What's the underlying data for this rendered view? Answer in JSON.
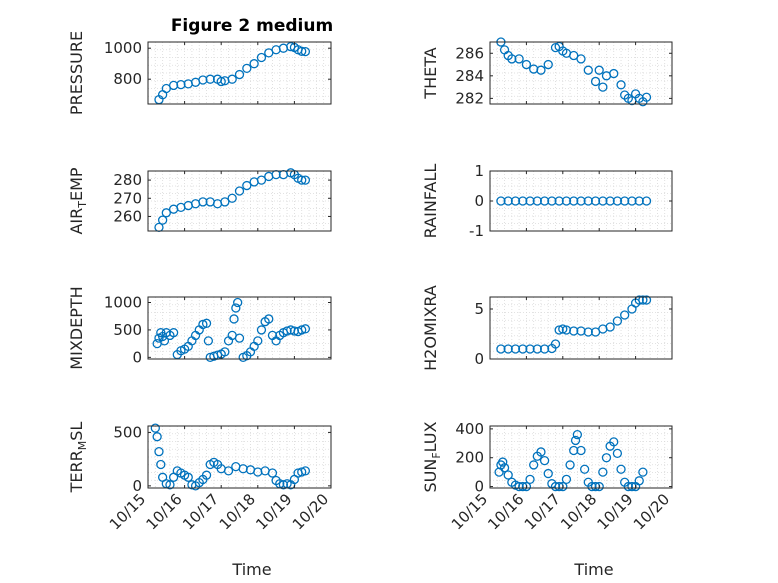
{
  "chart_data": {
    "type": "scatter",
    "title": "Figure 2 medium",
    "x_tick_labels": [
      "10/15",
      "10/16",
      "10/17",
      "10/18",
      "10/19",
      "10/20"
    ],
    "xlabel": "Time",
    "grid": "minor dotted",
    "marker": "open circle",
    "color": "#0072BD",
    "panels": [
      {
        "id": "pressure",
        "ylabel": "PRESSURE",
        "ylim": [
          640,
          1040
        ],
        "yticks": [
          800,
          1000
        ],
        "series": [
          {
            "x": [
              0.3,
              0.4,
              0.5,
              0.7,
              0.9,
              1.1,
              1.3,
              1.5,
              1.7,
              1.9,
              2.0,
              2.1,
              2.3,
              2.5,
              2.7,
              2.9,
              3.1,
              3.3,
              3.5,
              3.7,
              3.9,
              4.0,
              4.1,
              4.2,
              4.3
            ],
            "y": [
              668,
              700,
              740,
              760,
              765,
              770,
              780,
              795,
              800,
              800,
              785,
              790,
              800,
              830,
              870,
              900,
              940,
              970,
              990,
              1000,
              1010,
              1005,
              990,
              980,
              978
            ]
          }
        ]
      },
      {
        "id": "theta",
        "ylabel": "THETA",
        "ylim": [
          281.5,
          287
        ],
        "yticks": [
          282,
          284,
          286
        ],
        "series": [
          {
            "x": [
              0.3,
              0.4,
              0.5,
              0.6,
              0.8,
              1.0,
              1.2,
              1.4,
              1.6,
              1.8,
              1.9,
              2.0,
              2.1,
              2.3,
              2.5,
              2.7,
              2.9,
              3.0,
              3.1,
              3.2,
              3.4,
              3.6,
              3.7,
              3.8,
              3.9,
              4.0,
              4.1,
              4.2,
              4.3
            ],
            "y": [
              287,
              286.3,
              285.8,
              285.5,
              285.5,
              285,
              284.6,
              284.5,
              285,
              286.5,
              286.6,
              286.2,
              286,
              285.8,
              285.5,
              284.5,
              283.5,
              284.5,
              283,
              284,
              284.2,
              283.2,
              282.3,
              282,
              281.8,
              282.4,
              282,
              281.7,
              282.1
            ]
          }
        ]
      },
      {
        "id": "air_temp",
        "ylabel": "AIR",
        "ylabel_sub": "T",
        "ylabel_end": "EMP",
        "ylim": [
          252,
          285
        ],
        "yticks": [
          260,
          270,
          280
        ],
        "series": [
          {
            "x": [
              0.3,
              0.4,
              0.5,
              0.7,
              0.9,
              1.1,
              1.3,
              1.5,
              1.7,
              1.9,
              2.1,
              2.3,
              2.5,
              2.7,
              2.9,
              3.1,
              3.3,
              3.5,
              3.7,
              3.9,
              4.0,
              4.1,
              4.2,
              4.3
            ],
            "y": [
              254,
              258,
              262,
              264,
              265,
              266,
              267,
              268,
              268,
              267,
              268,
              270,
              274,
              277,
              279,
              280,
              282,
              283,
              283,
              284,
              283,
              281,
              280,
              280
            ]
          }
        ]
      },
      {
        "id": "rainfall",
        "ylabel": "RAINFALL",
        "ylim": [
          -1,
          1
        ],
        "yticks": [
          -1,
          0,
          1
        ],
        "series": [
          {
            "x": [
              0.3,
              0.5,
              0.7,
              0.9,
              1.1,
              1.3,
              1.5,
              1.7,
              1.9,
              2.1,
              2.3,
              2.5,
              2.7,
              2.9,
              3.1,
              3.3,
              3.5,
              3.7,
              3.9,
              4.1,
              4.3
            ],
            "y": [
              0,
              0,
              0,
              0,
              0,
              0,
              0,
              0,
              0,
              0,
              0,
              0,
              0,
              0,
              0,
              0,
              0,
              0,
              0,
              0,
              0
            ]
          }
        ]
      },
      {
        "id": "mixdepth",
        "ylabel": "MIXDEPTH",
        "ylim": [
          -30,
          1100
        ],
        "yticks": [
          0,
          500,
          1000
        ],
        "series": [
          {
            "x": [
              0.25,
              0.3,
              0.35,
              0.4,
              0.45,
              0.5,
              0.6,
              0.7,
              0.8,
              0.9,
              1.0,
              1.1,
              1.2,
              1.3,
              1.4,
              1.5,
              1.6,
              1.65,
              1.7,
              1.8,
              1.9,
              2.0,
              2.1,
              2.2,
              2.3,
              2.35,
              2.4,
              2.45,
              2.5,
              2.6,
              2.7,
              2.8,
              2.9,
              3.0,
              3.1,
              3.2,
              3.3,
              3.4,
              3.5,
              3.6,
              3.7,
              3.8,
              3.9,
              4.0,
              4.1,
              4.2,
              4.3
            ],
            "y": [
              250,
              350,
              450,
              380,
              300,
              450,
              400,
              450,
              50,
              120,
              150,
              200,
              300,
              400,
              500,
              600,
              620,
              300,
              0,
              20,
              40,
              60,
              100,
              300,
              400,
              700,
              900,
              1000,
              350,
              0,
              30,
              100,
              200,
              300,
              500,
              650,
              700,
              400,
              300,
              400,
              450,
              480,
              500,
              480,
              470,
              500,
              520
            ]
          }
        ]
      },
      {
        "id": "h2omixra",
        "ylabel": "H2OMIXRA",
        "ylim": [
          0,
          6.2
        ],
        "yticks": [
          0,
          5
        ],
        "series": [
          {
            "x": [
              0.3,
              0.5,
              0.7,
              0.9,
              1.1,
              1.3,
              1.5,
              1.7,
              1.8,
              1.9,
              2.0,
              2.1,
              2.3,
              2.5,
              2.7,
              2.9,
              3.1,
              3.3,
              3.5,
              3.7,
              3.9,
              4.0,
              4.1,
              4.2,
              4.3
            ],
            "y": [
              1,
              1,
              1,
              1,
              1,
              1,
              1,
              1.05,
              1.5,
              2.9,
              3,
              2.9,
              2.8,
              2.8,
              2.7,
              2.7,
              3,
              3.2,
              3.8,
              4.4,
              5,
              5.6,
              5.9,
              5.9,
              5.9
            ]
          }
        ]
      },
      {
        "id": "terr_msl",
        "ylabel": "TERR",
        "ylabel_sub": "M",
        "ylabel_end": "SL",
        "ylim": [
          -20,
          560
        ],
        "yticks": [
          0,
          500
        ],
        "series": [
          {
            "x": [
              0.2,
              0.25,
              0.3,
              0.35,
              0.4,
              0.5,
              0.6,
              0.7,
              0.8,
              0.9,
              1.0,
              1.1,
              1.2,
              1.3,
              1.4,
              1.5,
              1.6,
              1.7,
              1.8,
              1.9,
              2.0,
              2.2,
              2.4,
              2.6,
              2.8,
              3.0,
              3.2,
              3.4,
              3.5,
              3.6,
              3.7,
              3.8,
              3.9,
              4.0,
              4.1,
              4.2,
              4.3
            ],
            "y": [
              540,
              460,
              320,
              200,
              80,
              20,
              10,
              80,
              140,
              120,
              100,
              80,
              10,
              0,
              30,
              60,
              100,
              200,
              220,
              200,
              160,
              140,
              180,
              160,
              150,
              130,
              140,
              120,
              50,
              20,
              10,
              20,
              10,
              60,
              120,
              130,
              140
            ]
          }
        ]
      },
      {
        "id": "sun_flux",
        "ylabel": "SUN",
        "ylabel_sub": "F",
        "ylabel_end": "LUX",
        "ylim": [
          -10,
          420
        ],
        "yticks": [
          0,
          200,
          400
        ],
        "series": [
          {
            "x": [
              0.25,
              0.3,
              0.35,
              0.4,
              0.5,
              0.6,
              0.7,
              0.8,
              0.9,
              1.0,
              1.1,
              1.2,
              1.3,
              1.4,
              1.5,
              1.6,
              1.7,
              1.8,
              1.9,
              2.0,
              2.1,
              2.2,
              2.3,
              2.35,
              2.4,
              2.5,
              2.6,
              2.7,
              2.8,
              2.9,
              3.0,
              3.1,
              3.2,
              3.3,
              3.4,
              3.5,
              3.6,
              3.7,
              3.8,
              3.9,
              4.0,
              4.1,
              4.2
            ],
            "y": [
              100,
              150,
              170,
              130,
              80,
              30,
              10,
              0,
              0,
              0,
              50,
              150,
              210,
              240,
              180,
              90,
              20,
              0,
              0,
              0,
              50,
              150,
              250,
              320,
              360,
              250,
              120,
              30,
              0,
              0,
              0,
              100,
              200,
              280,
              310,
              230,
              120,
              30,
              0,
              0,
              0,
              40,
              100
            ]
          }
        ]
      }
    ]
  }
}
